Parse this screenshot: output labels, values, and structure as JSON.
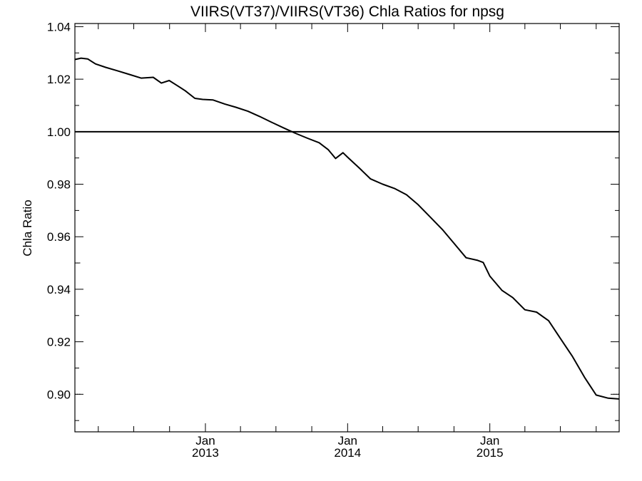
{
  "chart_data": {
    "type": "line",
    "title": "VIIRS(VT37)/VIIRS(VT36)  Chla Ratios for npsg",
    "xlabel": "",
    "ylabel": "Chla Ratio",
    "xlim": [
      "2012-02-01",
      "2015-11-29"
    ],
    "ylim": [
      0.8857,
      1.0412
    ],
    "y_ticks": [
      "0.90",
      "0.92",
      "0.94",
      "0.96",
      "0.98",
      "1.00",
      "1.02",
      "1.04"
    ],
    "x_ticks": [
      {
        "date": "2013-01-01",
        "month": "Jan",
        "year": "2013"
      },
      {
        "date": "2014-01-01",
        "month": "Jan",
        "year": "2014"
      },
      {
        "date": "2015-01-01",
        "month": "Jan",
        "year": "2015"
      }
    ],
    "reference_line": 1.0,
    "series": [
      {
        "x": [
          "2012-02-01",
          "2012-02-17",
          "2012-03-05",
          "2012-03-25",
          "2012-04-20",
          "2012-05-20",
          "2012-06-20",
          "2012-07-20",
          "2012-08-20",
          "2012-09-10",
          "2012-09-30",
          "2012-10-18",
          "2012-11-10",
          "2012-12-05",
          "2012-12-25",
          "2013-01-20",
          "2013-02-20",
          "2013-03-20",
          "2013-04-20",
          "2013-05-20",
          "2013-06-20",
          "2013-07-20",
          "2013-08-20",
          "2013-09-20",
          "2013-10-20",
          "2013-11-12",
          "2013-12-01",
          "2013-12-20",
          "2014-01-01",
          "2014-02-01",
          "2014-03-01",
          "2014-04-01",
          "2014-05-01",
          "2014-06-01",
          "2014-07-01",
          "2014-08-01",
          "2014-09-01",
          "2014-10-01",
          "2014-11-01",
          "2014-12-01",
          "2014-12-15",
          "2015-01-01",
          "2015-02-01",
          "2015-03-01",
          "2015-04-01",
          "2015-05-01",
          "2015-06-01",
          "2015-07-01",
          "2015-08-01",
          "2015-09-01",
          "2015-10-01",
          "2015-11-01",
          "2015-11-29"
        ],
        "values": [
          1.0275,
          1.028,
          1.0277,
          1.0258,
          1.0245,
          1.0232,
          1.0218,
          1.0204,
          1.0207,
          1.0185,
          1.0195,
          1.0178,
          1.0156,
          1.0127,
          1.0123,
          1.0121,
          1.0105,
          1.0093,
          1.0078,
          1.0058,
          1.0036,
          1.0015,
          0.9994,
          0.9975,
          0.9958,
          0.9932,
          0.9898,
          0.992,
          0.9903,
          0.986,
          0.982,
          0.98,
          0.9784,
          0.976,
          0.9722,
          0.9675,
          0.9628,
          0.9575,
          0.952,
          0.951,
          0.9502,
          0.945,
          0.9396,
          0.9368,
          0.9322,
          0.9313,
          0.928,
          0.9213,
          0.9144,
          0.9065,
          0.8997,
          0.8985,
          0.8982
        ]
      }
    ],
    "grid": false,
    "legend": "none"
  }
}
